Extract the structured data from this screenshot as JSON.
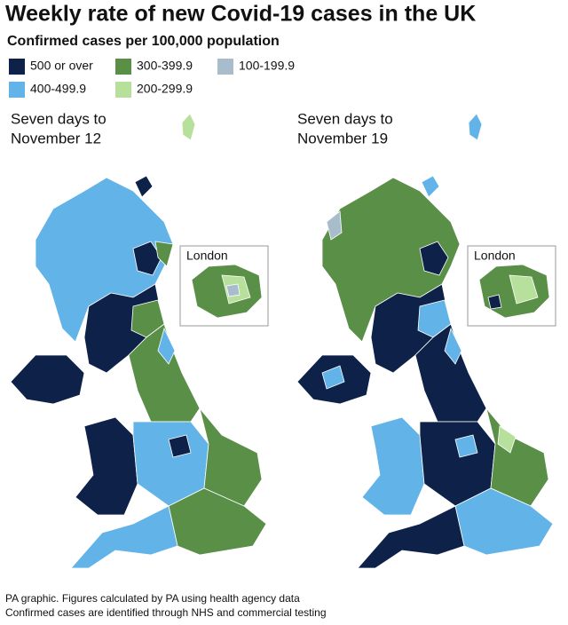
{
  "title": "Weekly rate of new Covid-19 cases in the UK",
  "subtitle": "Confirmed cases per 100,000 population",
  "legend": [
    {
      "label": "500 or over",
      "color": "#0e2148"
    },
    {
      "label": "400-499.9",
      "color": "#62b4e8"
    },
    {
      "label": "300-399.9",
      "color": "#5a8f48"
    },
    {
      "label": "200-299.9",
      "color": "#b7e09c"
    },
    {
      "label": "100-199.9",
      "color": "#a8bccc"
    }
  ],
  "maps": [
    {
      "heading": [
        "Seven days to",
        "November 12"
      ],
      "inset": "London"
    },
    {
      "heading": [
        "Seven days to",
        "November 19"
      ],
      "inset": "London"
    }
  ],
  "footer": [
    "PA graphic. Figures calculated by PA using health agency data",
    "Confirmed cases are identified through NHS and commercial testing"
  ]
}
